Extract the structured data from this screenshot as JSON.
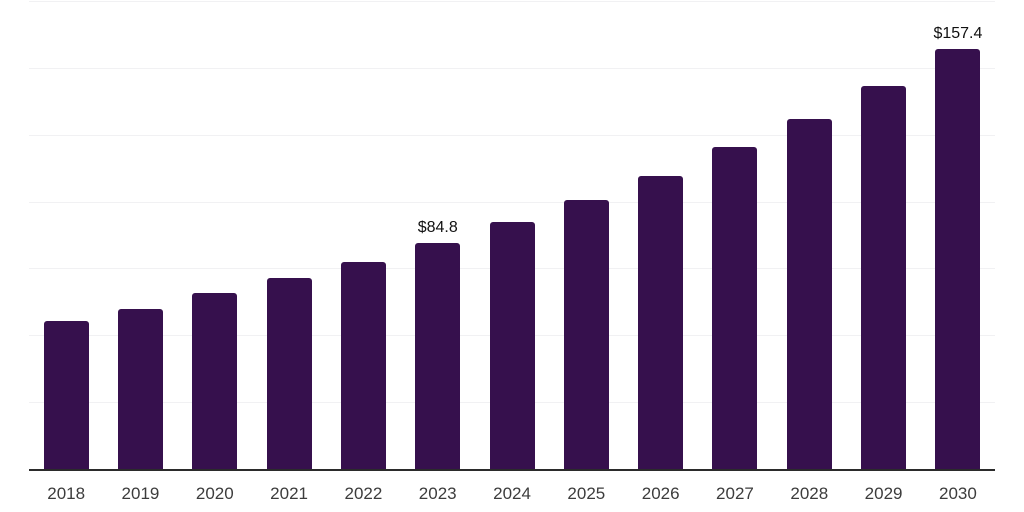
{
  "chart_data": {
    "type": "bar",
    "title": "",
    "xlabel": "",
    "ylabel": "",
    "categories": [
      "2018",
      "2019",
      "2020",
      "2021",
      "2022",
      "2023",
      "2024",
      "2025",
      "2026",
      "2027",
      "2028",
      "2029",
      "2030"
    ],
    "values": [
      55.6,
      60.1,
      66.1,
      71.7,
      77.6,
      84.8,
      92.6,
      100.9,
      110.1,
      120.6,
      131.4,
      143.7,
      157.4
    ],
    "value_labels": {
      "2023": "$84.8",
      "2030": "$157.4"
    },
    "ylim": [
      0,
      175
    ],
    "gridline_step": 25,
    "grid": "horizontal-only",
    "legend": "none",
    "y_tick_labels_shown": false,
    "colors": {
      "bar": "#36104d",
      "gridline": "#f1f1f3",
      "axis_line": "#2b2b2b",
      "value_label": "#111111",
      "tick_label": "#3c3c3c",
      "background": "#ffffff"
    }
  }
}
